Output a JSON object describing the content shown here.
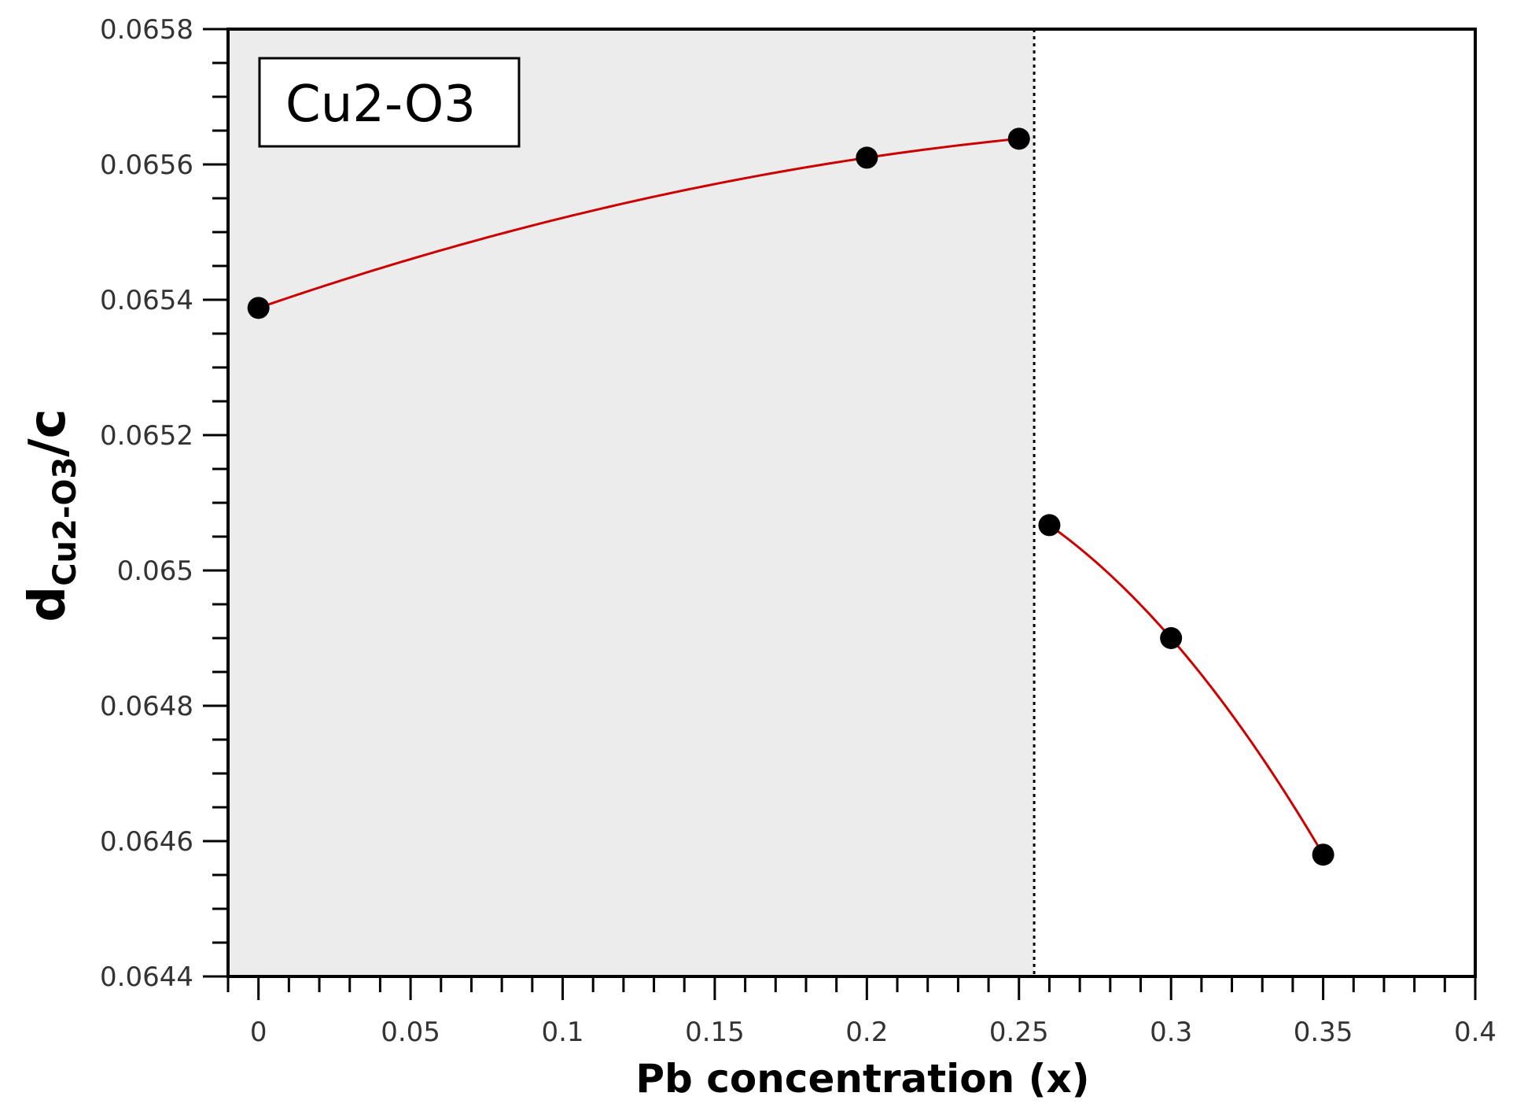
{
  "chart_data": {
    "type": "scatter",
    "title": "",
    "xlabel": "Pb concentration (x)",
    "ylabel_main": "d",
    "ylabel_sub": "Cu2-O3",
    "ylabel_tail": "/c",
    "xlim": [
      -0.01,
      0.4
    ],
    "ylim": [
      0.0644,
      0.0658
    ],
    "x_ticks": [
      0,
      0.05,
      0.1,
      0.15,
      0.2,
      0.25,
      0.3,
      0.35,
      0.4
    ],
    "x_tick_labels": [
      "0",
      "0.05",
      "0.1",
      "0.15",
      "0.2",
      "0.25",
      "0.3",
      "0.35",
      "0.4"
    ],
    "y_ticks": [
      0.0644,
      0.0646,
      0.0648,
      0.065,
      0.0652,
      0.0654,
      0.0656,
      0.0658
    ],
    "y_tick_labels": [
      "0.0644",
      "0.0646",
      "0.0648",
      "0.065",
      "0.0652",
      "0.0654",
      "0.0656",
      "0.0658"
    ],
    "legend_box_text": "Cu2-O3",
    "shaded_region": {
      "x_from": -0.01,
      "x_to": 0.255,
      "color": "#ececec"
    },
    "divider_x": 0.255,
    "series": [
      {
        "points": [
          [
            0,
            0.065388
          ],
          [
            0.2,
            0.06561
          ],
          [
            0.25,
            0.065638
          ]
        ],
        "marker_color": "#000000",
        "fit_color": "#cc0000"
      },
      {
        "points": [
          [
            0.26,
            0.065067
          ],
          [
            0.3,
            0.0649
          ],
          [
            0.35,
            0.06458
          ]
        ],
        "marker_color": "#000000",
        "fit_color": "#cc0000"
      }
    ]
  }
}
